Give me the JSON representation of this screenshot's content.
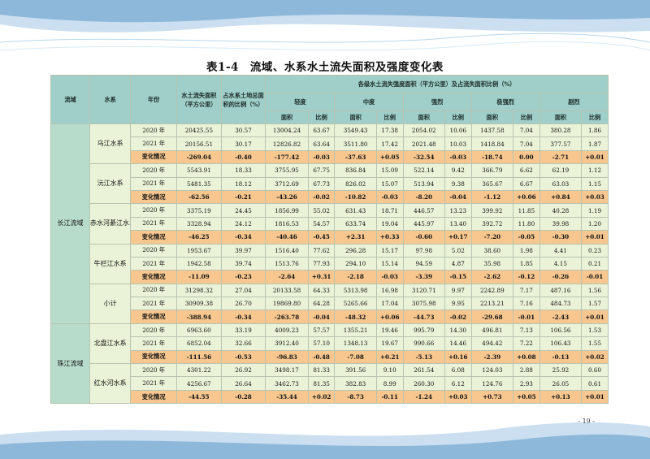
{
  "title": "表1-4　流域、水系水土流失面积及强度变化表",
  "page_number": "- 19 -",
  "colors": {
    "header_bg": "#9fcfc8",
    "row_bg": "#eaf3d8",
    "change_row_bg": "#f7c78f",
    "basin_bg": "#b8dccb",
    "accent": "#1e6fb3"
  },
  "headers": {
    "basin": "流域",
    "system": "水系",
    "year": "年份",
    "area": "水土流失面积（平方公里）",
    "ratio": "占水系土地总面积的比例（%）",
    "group": "各级水土流失强度面积（平方公里）及占流失面积比例（%）",
    "levels": [
      "轻度",
      "中度",
      "强烈",
      "极强烈",
      "剧烈"
    ],
    "sub_area": "面积",
    "sub_ratio": "比例"
  },
  "basins": [
    {
      "name": "长江流域",
      "systems": [
        {
          "name": "乌江水系",
          "rows": [
            {
              "label": "2020 年",
              "change": false,
              "values": [
                "20425.55",
                "30.57",
                "13004.24",
                "63.67",
                "3549.43",
                "17.38",
                "2054.02",
                "10.06",
                "1437.58",
                "7.04",
                "380.28",
                "1.86"
              ]
            },
            {
              "label": "2021 年",
              "change": false,
              "values": [
                "20156.51",
                "30.17",
                "12826.82",
                "63.64",
                "3511.80",
                "17.42",
                "2021.48",
                "10.03",
                "1418.84",
                "7.04",
                "377.57",
                "1.87"
              ]
            },
            {
              "label": "变化情况",
              "change": true,
              "values": [
                "-269.04",
                "-0.40",
                "-177.42",
                "-0.03",
                "-37.63",
                "+0.05",
                "-32.54",
                "-0.03",
                "-18.74",
                "0.00",
                "-2.71",
                "+0.01"
              ]
            }
          ]
        },
        {
          "name": "沅江水系",
          "rows": [
            {
              "label": "2020 年",
              "change": false,
              "values": [
                "5543.91",
                "18.33",
                "3755.95",
                "67.75",
                "836.84",
                "15.09",
                "522.14",
                "9.42",
                "366.79",
                "6.62",
                "62.19",
                "1.12"
              ]
            },
            {
              "label": "2021 年",
              "change": false,
              "values": [
                "5481.35",
                "18.12",
                "3712.69",
                "67.73",
                "826.02",
                "15.07",
                "513.94",
                "9.38",
                "365.67",
                "6.67",
                "63.03",
                "1.15"
              ]
            },
            {
              "label": "变化情况",
              "change": true,
              "values": [
                "-62.56",
                "-0.21",
                "-43.26",
                "-0.02",
                "-10.82",
                "-0.03",
                "-8.20",
                "-0.04",
                "-1.12",
                "+0.06",
                "+0.84",
                "+0.03"
              ]
            }
          ]
        },
        {
          "name": "赤水河綦江水系",
          "rows": [
            {
              "label": "2020 年",
              "change": false,
              "values": [
                "3375.19",
                "24.45",
                "1856.99",
                "55.02",
                "631.43",
                "18.71",
                "446.57",
                "13.23",
                "399.92",
                "11.85",
                "40.28",
                "1.19"
              ]
            },
            {
              "label": "2021 年",
              "change": false,
              "values": [
                "3328.94",
                "24.12",
                "1816.53",
                "54.57",
                "633.74",
                "19.04",
                "445.97",
                "13.40",
                "392.72",
                "11.80",
                "39.98",
                "1.20"
              ]
            },
            {
              "label": "变化情况",
              "change": true,
              "values": [
                "-46.25",
                "-0.34",
                "-40.46",
                "-0.45",
                "+2.31",
                "+0.33",
                "-0.60",
                "+0.17",
                "-7.20",
                "-0.05",
                "-0.30",
                "+0.01"
              ]
            }
          ]
        },
        {
          "name": "牛栏江水系",
          "rows": [
            {
              "label": "2020 年",
              "change": false,
              "values": [
                "1953.67",
                "39.97",
                "1516.40",
                "77.62",
                "296.28",
                "15.17",
                "97.98",
                "5.02",
                "38.60",
                "1.98",
                "4.41",
                "0.23"
              ]
            },
            {
              "label": "2021 年",
              "change": false,
              "values": [
                "1942.58",
                "39.74",
                "1513.76",
                "77.93",
                "294.10",
                "15.14",
                "94.59",
                "4.87",
                "35.98",
                "1.85",
                "4.15",
                "0.21"
              ]
            },
            {
              "label": "变化情况",
              "change": true,
              "values": [
                "-11.09",
                "-0.23",
                "-2.64",
                "+0.31",
                "-2.18",
                "-0.03",
                "-3.39",
                "-0.15",
                "-2.62",
                "-0.12",
                "-0.26",
                "-0.01"
              ]
            }
          ]
        },
        {
          "name": "小计",
          "rows": [
            {
              "label": "2020 年",
              "change": false,
              "values": [
                "31298.32",
                "27.04",
                "20133.58",
                "64.33",
                "5313.98",
                "16.98",
                "3120.71",
                "9.97",
                "2242.89",
                "7.17",
                "487.16",
                "1.56"
              ]
            },
            {
              "label": "2021 年",
              "change": false,
              "values": [
                "30909.38",
                "26.70",
                "19869.80",
                "64.28",
                "5265.66",
                "17.04",
                "3075.98",
                "9.95",
                "2213.21",
                "7.16",
                "484.73",
                "1.57"
              ]
            },
            {
              "label": "变化情况",
              "change": true,
              "values": [
                "-388.94",
                "-0.34",
                "-263.78",
                "-0.04",
                "-48.32",
                "+0.06",
                "-44.73",
                "-0.02",
                "-29.68",
                "-0.01",
                "-2.43",
                "+0.01"
              ]
            }
          ]
        }
      ]
    },
    {
      "name": "珠江流域",
      "systems": [
        {
          "name": "北盘江水系",
          "rows": [
            {
              "label": "2020 年",
              "change": false,
              "values": [
                "6963.60",
                "33.19",
                "4009.23",
                "57.57",
                "1355.21",
                "19.46",
                "995.79",
                "14.30",
                "496.81",
                "7.13",
                "106.56",
                "1.53"
              ]
            },
            {
              "label": "2021 年",
              "change": false,
              "values": [
                "6852.04",
                "32.66",
                "3912.40",
                "57.10",
                "1348.13",
                "19.67",
                "990.66",
                "14.46",
                "494.42",
                "7.22",
                "106.43",
                "1.55"
              ]
            },
            {
              "label": "变化情况",
              "change": true,
              "values": [
                "-111.56",
                "-0.53",
                "-96.83",
                "-0.48",
                "-7.08",
                "+0.21",
                "-5.13",
                "+0.16",
                "-2.39",
                "+0.08",
                "-0.13",
                "+0.02"
              ]
            }
          ]
        },
        {
          "name": "红水河水系",
          "rows": [
            {
              "label": "2020 年",
              "change": false,
              "values": [
                "4301.22",
                "26.92",
                "3498.17",
                "81.33",
                "391.56",
                "9.10",
                "261.54",
                "6.08",
                "124.03",
                "2.88",
                "25.92",
                "0.60"
              ]
            },
            {
              "label": "2021 年",
              "change": false,
              "values": [
                "4256.67",
                "26.64",
                "3462.73",
                "81.35",
                "382.83",
                "8.99",
                "260.30",
                "6.12",
                "124.76",
                "2.93",
                "26.05",
                "0.61"
              ]
            },
            {
              "label": "变化情况",
              "change": true,
              "values": [
                "-44.55",
                "-0.28",
                "-35.44",
                "+0.02",
                "-8.73",
                "-0.11",
                "-1.24",
                "+0.03",
                "+0.73",
                "+0.05",
                "+0.13",
                "+0.01"
              ]
            }
          ]
        }
      ]
    }
  ]
}
